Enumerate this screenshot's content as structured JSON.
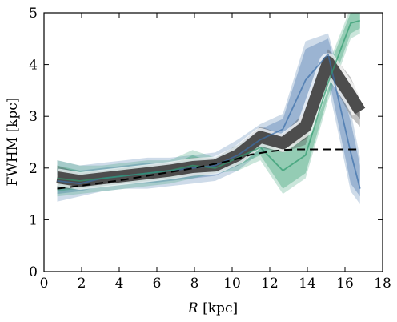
{
  "chart_data": {
    "type": "line",
    "xlabel_var": "R",
    "xlabel_unit": " [kpc]",
    "ylabel": "FWHM [kpc]",
    "xlim": [
      0,
      18
    ],
    "ylim": [
      0,
      5
    ],
    "xticks": [
      0,
      2,
      4,
      6,
      8,
      10,
      12,
      14,
      16,
      18
    ],
    "yticks": [
      0,
      1,
      2,
      3,
      4,
      5
    ],
    "grid": false,
    "x": [
      0.7,
      1.9,
      3.1,
      4.3,
      5.5,
      6.7,
      7.9,
      9.1,
      10.3,
      11.5,
      12.7,
      13.9,
      15.1,
      16.3,
      16.8
    ],
    "series": [
      {
        "color": "#3b6ea8",
        "band_outer": [
          [
            1.35,
            2.15
          ],
          [
            1.45,
            2.05
          ],
          [
            1.55,
            2.1
          ],
          [
            1.6,
            2.15
          ],
          [
            1.6,
            2.2
          ],
          [
            1.65,
            2.2
          ],
          [
            1.7,
            2.25
          ],
          [
            1.75,
            2.3
          ],
          [
            1.95,
            2.55
          ],
          [
            2.3,
            2.85
          ],
          [
            2.45,
            3.05
          ],
          [
            2.9,
            4.45
          ],
          [
            3.6,
            4.6
          ],
          [
            1.55,
            3.1
          ],
          [
            1.3,
            2.2
          ]
        ],
        "band_inner": [
          [
            1.5,
            2.0
          ],
          [
            1.55,
            1.95
          ],
          [
            1.65,
            2.0
          ],
          [
            1.7,
            2.05
          ],
          [
            1.7,
            2.1
          ],
          [
            1.75,
            2.1
          ],
          [
            1.8,
            2.15
          ],
          [
            1.85,
            2.2
          ],
          [
            2.05,
            2.45
          ],
          [
            2.4,
            2.75
          ],
          [
            2.55,
            2.95
          ],
          [
            3.1,
            4.3
          ],
          [
            3.8,
            4.5
          ],
          [
            1.7,
            2.9
          ],
          [
            1.45,
            2.05
          ]
        ],
        "center": [
          1.75,
          1.7,
          1.8,
          1.85,
          1.9,
          1.95,
          2.0,
          2.05,
          2.25,
          2.55,
          2.75,
          3.7,
          4.2,
          2.3,
          1.6
        ]
      },
      {
        "color": "#2f9a6e",
        "band_outer": [
          [
            1.45,
            2.15
          ],
          [
            1.5,
            2.05
          ],
          [
            1.55,
            2.05
          ],
          [
            1.6,
            2.1
          ],
          [
            1.65,
            2.15
          ],
          [
            1.7,
            2.15
          ],
          [
            1.8,
            2.35
          ],
          [
            1.9,
            2.2
          ],
          [
            1.95,
            2.45
          ],
          [
            2.15,
            2.65
          ],
          [
            1.5,
            2.45
          ],
          [
            1.8,
            2.75
          ],
          [
            3.3,
            4.0
          ],
          [
            4.5,
            5.1
          ],
          [
            4.6,
            5.1
          ]
        ],
        "band_inner": [
          [
            1.55,
            2.05
          ],
          [
            1.6,
            1.95
          ],
          [
            1.65,
            1.95
          ],
          [
            1.7,
            2.0
          ],
          [
            1.75,
            2.05
          ],
          [
            1.8,
            2.05
          ],
          [
            1.9,
            2.25
          ],
          [
            1.95,
            2.1
          ],
          [
            2.05,
            2.35
          ],
          [
            2.25,
            2.55
          ],
          [
            1.6,
            2.3
          ],
          [
            1.9,
            2.6
          ],
          [
            3.4,
            3.9
          ],
          [
            4.6,
            5.0
          ],
          [
            4.7,
            5.0
          ]
        ],
        "center": [
          1.8,
          1.75,
          1.8,
          1.85,
          1.9,
          1.95,
          2.05,
          2.0,
          2.2,
          2.4,
          1.95,
          2.25,
          3.65,
          4.8,
          4.85
        ]
      },
      {
        "color": "#4d4d4d",
        "band_outer": [
          [
            1.6,
            2.05
          ],
          [
            1.6,
            1.9
          ],
          [
            1.65,
            1.95
          ],
          [
            1.7,
            2.0
          ],
          [
            1.75,
            2.05
          ],
          [
            1.8,
            2.1
          ],
          [
            1.85,
            2.2
          ],
          [
            1.9,
            2.2
          ],
          [
            2.05,
            2.45
          ],
          [
            2.4,
            2.8
          ],
          [
            2.3,
            2.65
          ],
          [
            2.45,
            3.1
          ],
          [
            3.8,
            4.3
          ],
          [
            3.0,
            3.75
          ],
          [
            2.8,
            3.35
          ]
        ],
        "band_inner": [
          [
            1.7,
            1.95
          ],
          [
            1.68,
            1.83
          ],
          [
            1.72,
            1.88
          ],
          [
            1.77,
            1.93
          ],
          [
            1.82,
            1.98
          ],
          [
            1.87,
            2.03
          ],
          [
            1.93,
            2.12
          ],
          [
            1.97,
            2.13
          ],
          [
            2.12,
            2.38
          ],
          [
            2.48,
            2.72
          ],
          [
            2.38,
            2.58
          ],
          [
            2.55,
            3.0
          ],
          [
            3.9,
            4.2
          ],
          [
            3.15,
            3.6
          ],
          [
            2.95,
            3.2
          ]
        ],
        "center": [
          1.82,
          1.75,
          1.8,
          1.85,
          1.9,
          1.95,
          2.02,
          2.05,
          2.25,
          2.6,
          2.48,
          2.8,
          4.05,
          3.4,
          3.1
        ]
      }
    ],
    "reference": {
      "style": "dashed",
      "color": "#000000",
      "x": [
        0.7,
        2.0,
        4.0,
        6.0,
        8.0,
        10.0,
        11.0,
        12.0,
        12.7,
        13.5,
        15.0,
        16.8
      ],
      "y": [
        1.6,
        1.66,
        1.76,
        1.88,
        2.0,
        2.15,
        2.26,
        2.32,
        2.35,
        2.36,
        2.36,
        2.36
      ]
    }
  }
}
